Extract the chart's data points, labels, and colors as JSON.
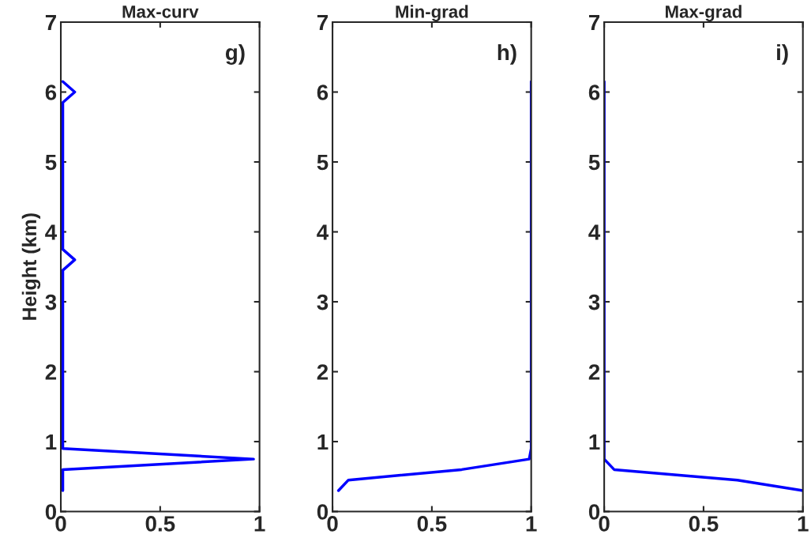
{
  "chart_data": [
    {
      "type": "line",
      "title": "Max-curv",
      "ylabel": "Height (km)",
      "annotations": [
        "g)"
      ],
      "xlim": [
        0,
        1
      ],
      "xticks": [
        0,
        0.5,
        1
      ],
      "ylim": [
        0,
        7
      ],
      "yticks": [
        0,
        1,
        2,
        3,
        4,
        5,
        6,
        7
      ],
      "series": [
        {
          "color": "#0000ff",
          "x": [
            0.01,
            0.01,
            0.97,
            0.01,
            0.01,
            0.07,
            0.01,
            0.01,
            0.07,
            0.01
          ],
          "values": [
            0.3,
            0.6,
            0.75,
            0.9,
            3.45,
            3.6,
            3.75,
            5.85,
            6.0,
            6.15
          ]
        }
      ]
    },
    {
      "type": "line",
      "title": "Min-grad",
      "annotations": [
        "h)"
      ],
      "xlim": [
        0,
        1
      ],
      "xticks": [
        0,
        0.5,
        1
      ],
      "ylim": [
        0,
        7
      ],
      "yticks": [
        0,
        1,
        2,
        3,
        4,
        5,
        6,
        7
      ],
      "series": [
        {
          "color": "#0000ff",
          "x": [
            0.03,
            0.08,
            0.65,
            0.99,
            1.0,
            1.0
          ],
          "values": [
            0.3,
            0.45,
            0.6,
            0.75,
            0.9,
            6.15
          ]
        }
      ]
    },
    {
      "type": "line",
      "title": "Max-grad",
      "annotations": [
        "i)"
      ],
      "xlim": [
        0,
        1
      ],
      "xticks": [
        0,
        0.5,
        1
      ],
      "ylim": [
        0,
        7
      ],
      "yticks": [
        0,
        1,
        2,
        3,
        4,
        5,
        6,
        7
      ],
      "series": [
        {
          "color": "#0000ff",
          "x": [
            1.0,
            0.67,
            0.05,
            0.0,
            0.0
          ],
          "values": [
            0.3,
            0.45,
            0.6,
            0.75,
            6.15
          ]
        }
      ]
    }
  ]
}
